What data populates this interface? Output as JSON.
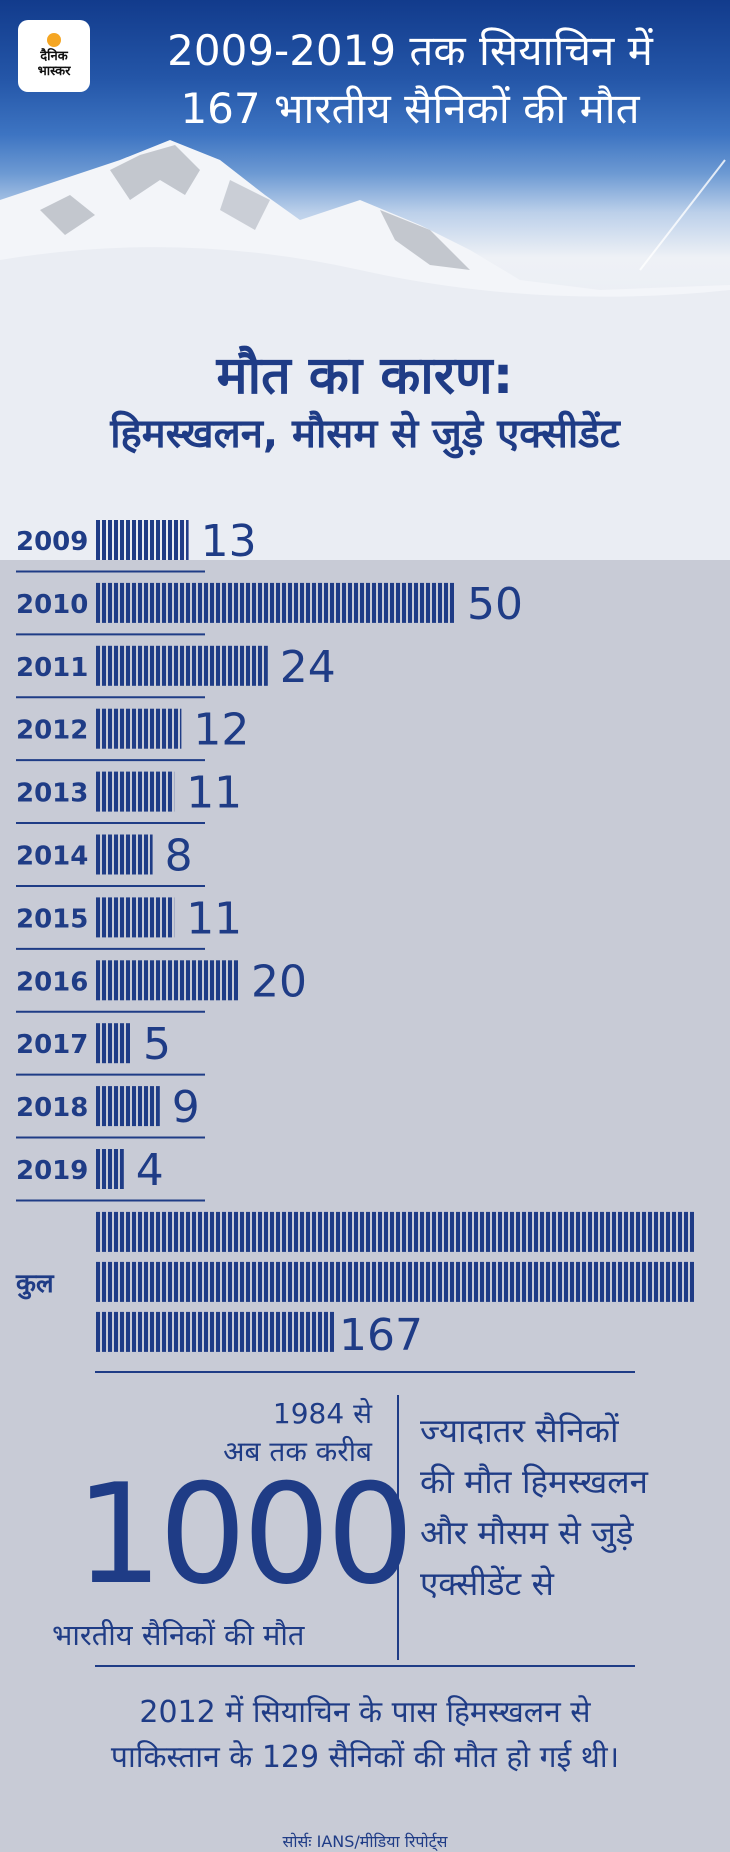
{
  "logo": {
    "line1": "दैनिक",
    "line2": "भास्कर"
  },
  "headline": {
    "line1": "2009-2019 तक सियाचिन में",
    "line2": "167 भारतीय सैनिकों की मौत"
  },
  "subhead": {
    "line1": "मौत का कारण:",
    "line2": "हिमस्खलन, मौसम से जुड़े एक्सीडेंट"
  },
  "chart_data": {
    "type": "bar",
    "orientation": "horizontal",
    "categories": [
      "2009",
      "2010",
      "2011",
      "2012",
      "2013",
      "2014",
      "2015",
      "2016",
      "2017",
      "2018",
      "2019"
    ],
    "values": [
      13,
      50,
      24,
      12,
      11,
      8,
      11,
      20,
      5,
      9,
      4
    ],
    "value_labels": [
      "13",
      "50",
      "24",
      "12",
      "11",
      "8",
      "11",
      "20",
      "5",
      "9",
      "4"
    ],
    "total": {
      "label": "कुल",
      "value": 167,
      "value_label": "167"
    },
    "bar_color": "#1f3c86",
    "grid": false
  },
  "info": {
    "since_line1": "1984 से",
    "since_line2": "अब तक करीब",
    "big_number": "1000",
    "big_caption": "भारतीय सैनिकों की मौत",
    "reason_lines": [
      "ज्यादातर सैनिकों",
      "की मौत हिमस्खलन",
      "और मौसम से जुड़े",
      "एक्सीडेंट से"
    ],
    "pak_line1": "2012 में सियाचिन के पास हिमस्खलन से",
    "pak_line2": "पाकिस्तान के 129 सैनिकों की मौत हो गई थी।",
    "source": "सोर्सः IANS/मीडिया रिपोर्ट्स"
  },
  "colors": {
    "primary": "#1f3c86",
    "sky": "#123b8c",
    "background": "#c8cbd6"
  }
}
